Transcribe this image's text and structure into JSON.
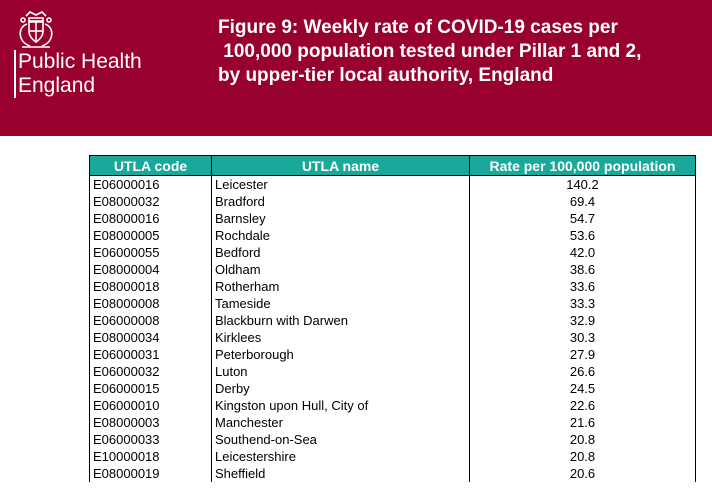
{
  "header": {
    "logo_lines": [
      "Public Health",
      "England"
    ],
    "title": "Figure 9: Weekly rate of COVID-19 cases per\n 100,000 population tested under Pillar 1 and 2,\nby upper-tier local authority, England",
    "background_color": "#98002e",
    "crest_icon": "royal-crest-icon"
  },
  "table": {
    "header_color": "#1aa89a",
    "columns": [
      "UTLA code",
      "UTLA name",
      "Rate per 100,000 population"
    ],
    "rows": [
      {
        "code": "E06000016",
        "name": "Leicester",
        "rate": "140.2"
      },
      {
        "code": "E08000032",
        "name": "Bradford",
        "rate": "69.4"
      },
      {
        "code": "E08000016",
        "name": "Barnsley",
        "rate": "54.7"
      },
      {
        "code": "E08000005",
        "name": "Rochdale",
        "rate": "53.6"
      },
      {
        "code": "E06000055",
        "name": "Bedford",
        "rate": "42.0"
      },
      {
        "code": "E08000004",
        "name": "Oldham",
        "rate": "38.6"
      },
      {
        "code": "E08000018",
        "name": "Rotherham",
        "rate": "33.6"
      },
      {
        "code": "E08000008",
        "name": "Tameside",
        "rate": "33.3"
      },
      {
        "code": "E06000008",
        "name": "Blackburn with Darwen",
        "rate": "32.9"
      },
      {
        "code": "E08000034",
        "name": "Kirklees",
        "rate": "30.3"
      },
      {
        "code": "E06000031",
        "name": "Peterborough",
        "rate": "27.9"
      },
      {
        "code": "E06000032",
        "name": "Luton",
        "rate": "26.6"
      },
      {
        "code": "E06000015",
        "name": "Derby",
        "rate": "24.5"
      },
      {
        "code": "E06000010",
        "name": "Kingston upon Hull, City of",
        "rate": "22.6"
      },
      {
        "code": "E08000003",
        "name": "Manchester",
        "rate": "21.6"
      },
      {
        "code": "E06000033",
        "name": "Southend-on-Sea",
        "rate": "20.8"
      },
      {
        "code": "E10000018",
        "name": "Leicestershire",
        "rate": "20.8"
      },
      {
        "code": "E08000019",
        "name": "Sheffield",
        "rate": "20.6"
      }
    ]
  }
}
